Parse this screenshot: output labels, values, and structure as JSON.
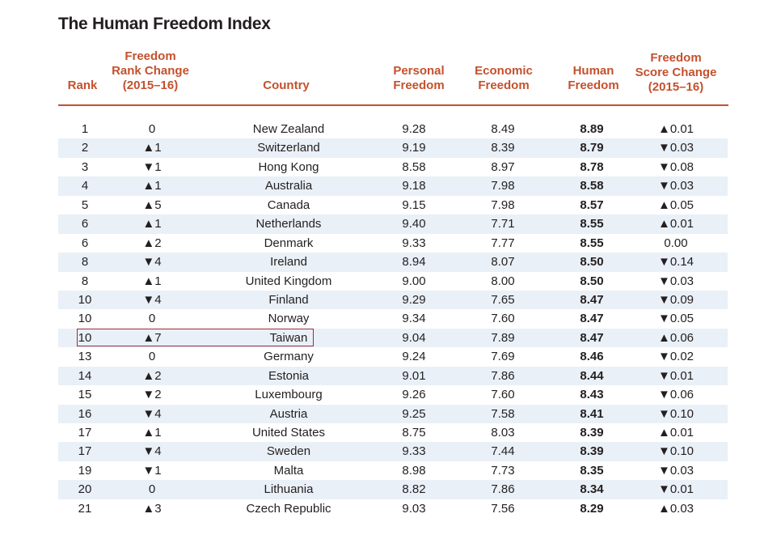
{
  "title": "The Human Freedom Index",
  "colors": {
    "header": "#c4512d",
    "stripe": "#eaf0f7",
    "highlight_border": "#9b2c3a"
  },
  "headers": {
    "rank": [
      "Rank"
    ],
    "rank_change": [
      "Freedom",
      "Rank Change",
      "(2015–16)"
    ],
    "country": [
      "Country"
    ],
    "personal": [
      "Personal",
      "Freedom"
    ],
    "economic": [
      "Economic",
      "Freedom"
    ],
    "human": [
      "Human",
      "Freedom"
    ],
    "score_change": [
      "Freedom",
      "Score Change",
      "(2015–16)"
    ]
  },
  "highlighted_country": "Taiwan",
  "rows": [
    {
      "rank": "1",
      "rank_change": "0",
      "country": "New Zealand",
      "personal": "9.28",
      "economic": "8.49",
      "human": "8.89",
      "score_change": "▲0.01"
    },
    {
      "rank": "2",
      "rank_change": "▲1",
      "country": "Switzerland",
      "personal": "9.19",
      "economic": "8.39",
      "human": "8.79",
      "score_change": "▼0.03"
    },
    {
      "rank": "3",
      "rank_change": "▼1",
      "country": "Hong Kong",
      "personal": "8.58",
      "economic": "8.97",
      "human": "8.78",
      "score_change": "▼0.08"
    },
    {
      "rank": "4",
      "rank_change": "▲1",
      "country": "Australia",
      "personal": "9.18",
      "economic": "7.98",
      "human": "8.58",
      "score_change": "▼0.03"
    },
    {
      "rank": "5",
      "rank_change": "▲5",
      "country": "Canada",
      "personal": "9.15",
      "economic": "7.98",
      "human": "8.57",
      "score_change": "▲0.05"
    },
    {
      "rank": "6",
      "rank_change": "▲1",
      "country": "Netherlands",
      "personal": "9.40",
      "economic": "7.71",
      "human": "8.55",
      "score_change": "▲0.01"
    },
    {
      "rank": "6",
      "rank_change": "▲2",
      "country": "Denmark",
      "personal": "9.33",
      "economic": "7.77",
      "human": "8.55",
      "score_change": "0.00"
    },
    {
      "rank": "8",
      "rank_change": "▼4",
      "country": "Ireland",
      "personal": "8.94",
      "economic": "8.07",
      "human": "8.50",
      "score_change": "▼0.14"
    },
    {
      "rank": "8",
      "rank_change": "▲1",
      "country": "United Kingdom",
      "personal": "9.00",
      "economic": "8.00",
      "human": "8.50",
      "score_change": "▼0.03"
    },
    {
      "rank": "10",
      "rank_change": "▼4",
      "country": "Finland",
      "personal": "9.29",
      "economic": "7.65",
      "human": "8.47",
      "score_change": "▼0.09"
    },
    {
      "rank": "10",
      "rank_change": "0",
      "country": "Norway",
      "personal": "9.34",
      "economic": "7.60",
      "human": "8.47",
      "score_change": "▼0.05"
    },
    {
      "rank": "10",
      "rank_change": "▲7",
      "country": "Taiwan",
      "personal": "9.04",
      "economic": "7.89",
      "human": "8.47",
      "score_change": "▲0.06"
    },
    {
      "rank": "13",
      "rank_change": "0",
      "country": "Germany",
      "personal": "9.24",
      "economic": "7.69",
      "human": "8.46",
      "score_change": "▼0.02"
    },
    {
      "rank": "14",
      "rank_change": "▲2",
      "country": "Estonia",
      "personal": "9.01",
      "economic": "7.86",
      "human": "8.44",
      "score_change": "▼0.01"
    },
    {
      "rank": "15",
      "rank_change": "▼2",
      "country": "Luxembourg",
      "personal": "9.26",
      "economic": "7.60",
      "human": "8.43",
      "score_change": "▼0.06"
    },
    {
      "rank": "16",
      "rank_change": "▼4",
      "country": "Austria",
      "personal": "9.25",
      "economic": "7.58",
      "human": "8.41",
      "score_change": "▼0.10"
    },
    {
      "rank": "17",
      "rank_change": "▲1",
      "country": "United States",
      "personal": "8.75",
      "economic": "8.03",
      "human": "8.39",
      "score_change": "▲0.01"
    },
    {
      "rank": "17",
      "rank_change": "▼4",
      "country": "Sweden",
      "personal": "9.33",
      "economic": "7.44",
      "human": "8.39",
      "score_change": "▼0.10"
    },
    {
      "rank": "19",
      "rank_change": "▼1",
      "country": "Malta",
      "personal": "8.98",
      "economic": "7.73",
      "human": "8.35",
      "score_change": "▼0.03"
    },
    {
      "rank": "20",
      "rank_change": "0",
      "country": "Lithuania",
      "personal": "8.82",
      "economic": "7.86",
      "human": "8.34",
      "score_change": "▼0.01"
    },
    {
      "rank": "21",
      "rank_change": "▲3",
      "country": "Czech Republic",
      "personal": "9.03",
      "economic": "7.56",
      "human": "8.29",
      "score_change": "▲0.03"
    }
  ]
}
